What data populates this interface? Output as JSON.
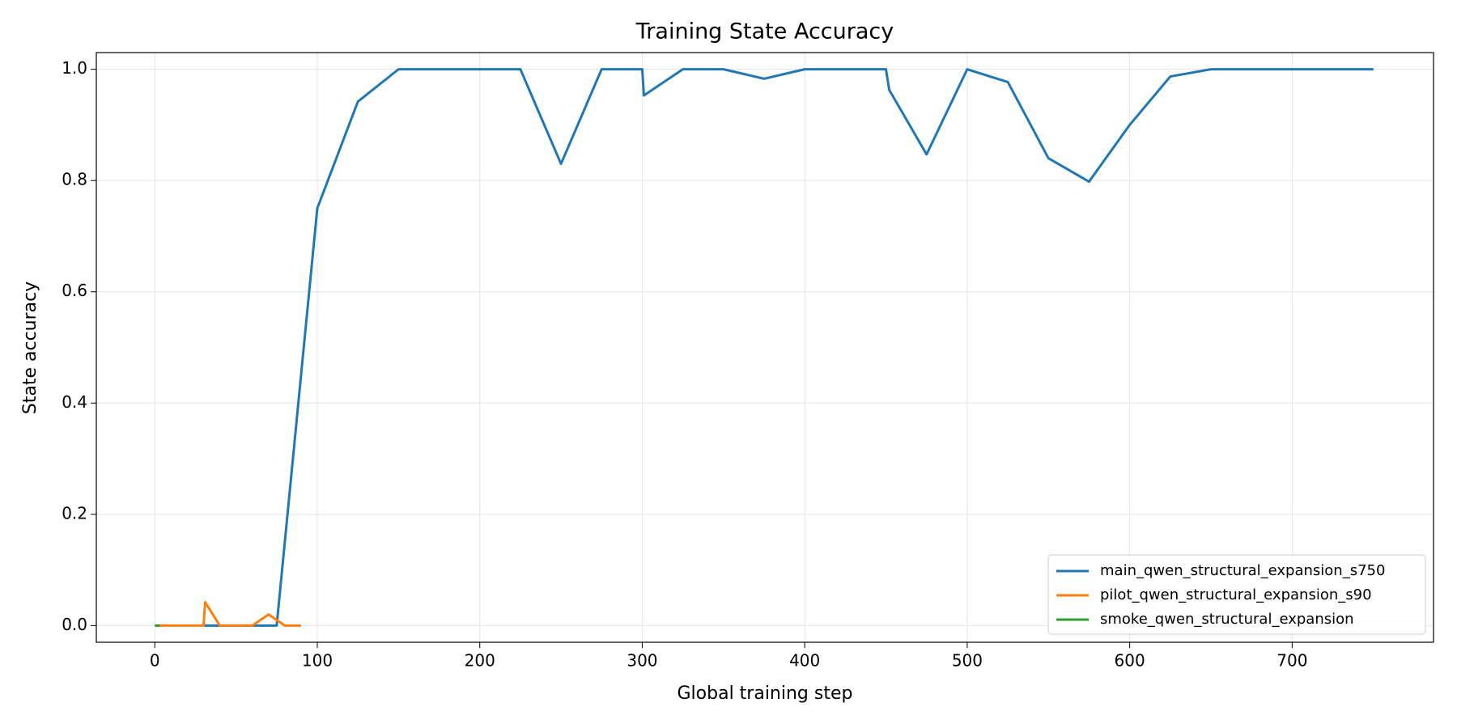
{
  "chart_data": {
    "type": "line",
    "title": "Training State Accuracy",
    "x_label": "Global training step",
    "y_label": "State accuracy",
    "xlim": [
      -36,
      787
    ],
    "ylim": [
      -0.03,
      1.03
    ],
    "xticks": [
      0,
      100,
      200,
      300,
      400,
      500,
      600,
      700
    ],
    "yticks": [
      {
        "value": 0,
        "label": "0.0"
      },
      {
        "value": 0.2,
        "label": "0.2"
      },
      {
        "value": 0.4,
        "label": "0.4"
      },
      {
        "value": 0.6,
        "label": "0.6"
      },
      {
        "value": 0.8,
        "label": "0.8"
      },
      {
        "value": 1,
        "label": "1.0"
      }
    ],
    "grid": true,
    "legend": "lower right",
    "series": [
      {
        "name": "main_qwen_structural_expansion_s750",
        "color": "#1f77b4",
        "x": [
          30,
          50,
          75,
          100,
          125,
          150,
          175,
          200,
          225,
          250,
          275,
          300,
          301,
          325,
          350,
          375,
          400,
          425,
          450,
          452,
          475,
          500,
          525,
          550,
          575,
          600,
          625,
          650,
          675,
          700,
          725,
          750
        ],
        "values": [
          0,
          0,
          0,
          0.75,
          0.942,
          1,
          1,
          1,
          1,
          0.83,
          1,
          1,
          0.953,
          1,
          1,
          0.983,
          1,
          1,
          1,
          0.963,
          0.847,
          1,
          0.977,
          0.84,
          0.798,
          0.9,
          0.987,
          1,
          1,
          1,
          1,
          1
        ]
      },
      {
        "name": "pilot_qwen_structural_expansion_s90",
        "color": "#ff7f0e",
        "x": [
          1,
          10,
          20,
          30,
          31,
          40,
          50,
          60,
          70,
          80,
          90
        ],
        "values": [
          0,
          0,
          0,
          0,
          0.042,
          0,
          0,
          0,
          0.02,
          0,
          0
        ]
      },
      {
        "name": "smoke_qwen_structural_expansion",
        "color": "#2ca02c",
        "x": [
          0,
          1,
          2,
          3
        ],
        "values": [
          0,
          0,
          0,
          0
        ]
      }
    ]
  }
}
